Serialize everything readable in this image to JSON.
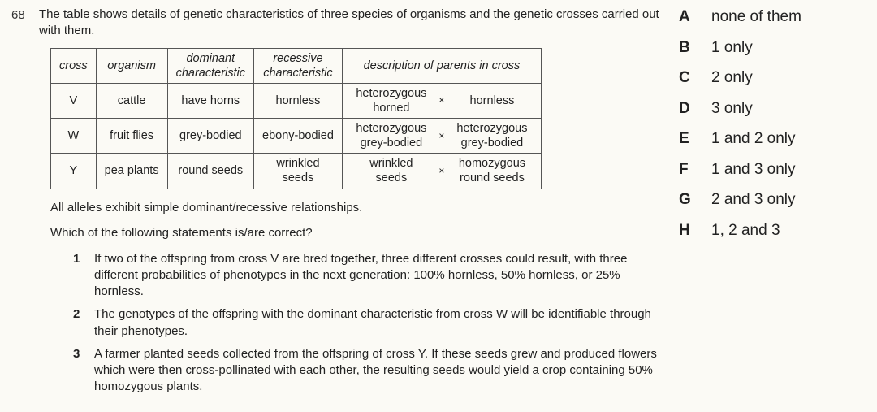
{
  "question_number": "68",
  "intro": "The table shows details of genetic characteristics of three species of organisms and the genetic crosses carried out with them.",
  "table": {
    "headers": {
      "cross": "cross",
      "organism": "organism",
      "dominant": "dominant characteristic",
      "recessive": "recessive characteristic",
      "description": "description of parents in cross"
    },
    "rows": [
      {
        "cross": "V",
        "organism": "cattle",
        "dominant": "have horns",
        "recessive": "hornless",
        "parent1": "heterozygous horned",
        "symbol": "×",
        "parent2": "hornless"
      },
      {
        "cross": "W",
        "organism": "fruit flies",
        "dominant": "grey-bodied",
        "recessive": "ebony-bodied",
        "parent1": "heterozygous grey-bodied",
        "symbol": "×",
        "parent2": "heterozygous grey-bodied"
      },
      {
        "cross": "Y",
        "organism": "pea plants",
        "dominant": "round seeds",
        "recessive": "wrinkled seeds",
        "parent1": "wrinkled seeds",
        "symbol": "×",
        "parent2": "homozygous round seeds"
      }
    ]
  },
  "note": "All alleles exhibit simple dominant/recessive relationships.",
  "ask": "Which of the following statements is/are correct?",
  "statements": [
    {
      "n": "1",
      "text": "If two of the offspring from cross V are bred together, three different crosses could result, with three different probabilities of phenotypes in the next generation: 100% hornless, 50% hornless, or 25% hornless."
    },
    {
      "n": "2",
      "text": "The genotypes of the offspring with the dominant characteristic from cross W will be identifiable through their phenotypes."
    },
    {
      "n": "3",
      "text": "A farmer planted seeds collected from the offspring of cross Y. If these seeds grew and produced flowers which were then cross-pollinated with each other, the resulting seeds would yield a crop containing 50% homozygous plants."
    }
  ],
  "options": [
    {
      "letter": "A",
      "text": "none of them"
    },
    {
      "letter": "B",
      "text": "1 only"
    },
    {
      "letter": "C",
      "text": "2 only"
    },
    {
      "letter": "D",
      "text": "3 only"
    },
    {
      "letter": "E",
      "text": "1 and 2 only"
    },
    {
      "letter": "F",
      "text": "1 and 3 only"
    },
    {
      "letter": "G",
      "text": "2 and 3 only"
    },
    {
      "letter": "H",
      "text": "1, 2 and 3"
    }
  ]
}
